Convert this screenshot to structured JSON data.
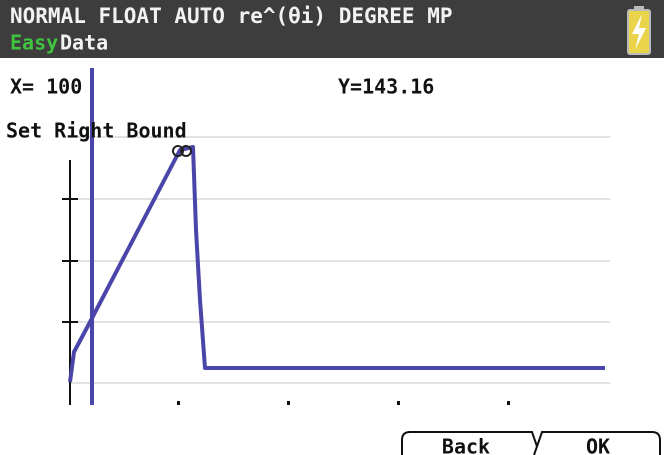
{
  "status_bar": {
    "mode": "NORMAL FLOAT AUTO re^(θi) DEGREE MP",
    "app_name": [
      "Easy",
      "Data"
    ]
  },
  "readout": {
    "x": "X= 100",
    "y": "Y=143.16"
  },
  "prompt": "Set Right Bound",
  "buttons": [
    "Back",
    "OK"
  ]
}
